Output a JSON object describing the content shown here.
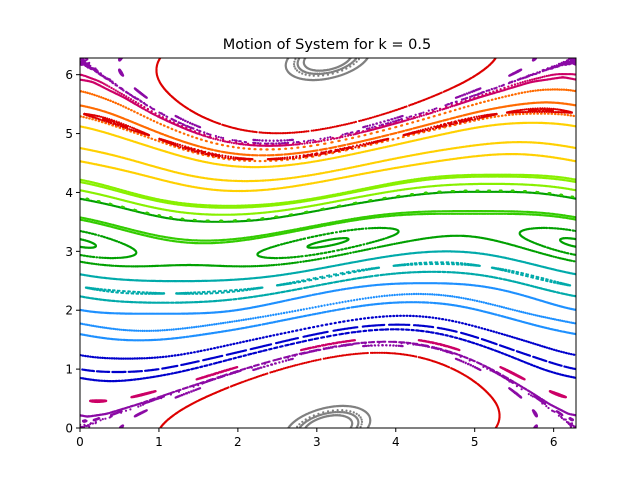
{
  "chart_data": {
    "type": "scatter",
    "title": "Motion of System for k = 0.5",
    "xlabel": "",
    "ylabel": "",
    "xlim": [
      0,
      6.2832
    ],
    "ylim": [
      0,
      6.2832
    ],
    "k": 0.5,
    "x_ticks": [
      0,
      1,
      2,
      3,
      4,
      5,
      6
    ],
    "y_ticks": [
      0,
      1,
      2,
      3,
      4,
      5,
      6
    ],
    "grid": false,
    "legend": "none",
    "palette": [
      "#8b0aa5",
      "#0000cc",
      "#1e90ff",
      "#00aaaa",
      "#00a000",
      "#33cc00",
      "#88f000",
      "#ffd000",
      "#ff6a00",
      "#dd0000",
      "#cc0066"
    ],
    "series": [
      {
        "color": "#8b0aa5",
        "initial_conditions": [
          [
            0.2,
            0.15
          ],
          [
            6.1,
            0.3
          ],
          [
            0.1,
            6.15
          ],
          [
            0.5,
            6.05
          ]
        ]
      },
      {
        "color": "#0000cc",
        "initial_conditions": [
          [
            0.3,
            0.8
          ],
          [
            1.0,
            1.0
          ],
          [
            0.2,
            1.2
          ]
        ]
      },
      {
        "color": "#1e90ff",
        "initial_conditions": [
          [
            0.5,
            1.5
          ],
          [
            0.1,
            1.75
          ],
          [
            0.4,
            1.95
          ]
        ]
      },
      {
        "color": "#00aaaa",
        "initial_conditions": [
          [
            0.5,
            2.15
          ],
          [
            0.2,
            2.35
          ],
          [
            0.3,
            2.55
          ]
        ]
      },
      {
        "color": "#00a000",
        "initial_conditions": [
          [
            0.5,
            2.75
          ],
          [
            0.2,
            2.9
          ],
          [
            0.2,
            3.1
          ],
          [
            0.8,
            3.65
          ]
        ]
      },
      {
        "color": "#33cc00",
        "initial_conditions": [
          [
            0.3,
            3.45
          ],
          [
            0.1,
            3.55
          ],
          [
            0.4,
            3.8
          ]
        ]
      },
      {
        "color": "#88f000",
        "initial_conditions": [
          [
            0.3,
            3.95
          ],
          [
            0.1,
            4.15
          ],
          [
            0.5,
            4.05
          ]
        ]
      },
      {
        "color": "#ffd000",
        "initial_conditions": [
          [
            0.3,
            4.45
          ],
          [
            0.2,
            4.7
          ],
          [
            0.6,
            4.9
          ]
        ]
      },
      {
        "color": "#ff6a00",
        "initial_conditions": [
          [
            0.5,
            5.1
          ],
          [
            0.1,
            5.45
          ],
          [
            0.3,
            5.6
          ]
        ]
      },
      {
        "color": "#dd0000",
        "initial_conditions": [
          [
            0.3,
            5.25
          ],
          [
            1.0,
            5.9
          ],
          [
            0.8,
            5.0
          ]
        ]
      },
      {
        "color": "#cc0066",
        "initial_conditions": [
          [
            0.2,
            5.85
          ],
          [
            6.0,
            6.0
          ],
          [
            0.3,
            0.45
          ]
        ]
      },
      {
        "color": "#808080",
        "initial_conditions": [
          [
            3.0,
            0.2
          ],
          [
            3.14,
            0.35
          ],
          [
            3.14,
            6.0
          ],
          [
            3.3,
            6.15
          ]
        ]
      }
    ]
  }
}
